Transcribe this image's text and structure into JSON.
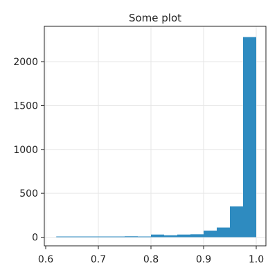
{
  "chart_data": {
    "type": "bar",
    "title": "Some plot",
    "xlabel": "",
    "ylabel": "",
    "xlim": [
      0.6,
      1.0
    ],
    "ylim": [
      0,
      2400
    ],
    "grid": true,
    "color": "#2E8BC0",
    "x_ticks": [
      0.6,
      0.7,
      0.8,
      0.9,
      1.0
    ],
    "x_tick_labels": [
      "0.6",
      "0.7",
      "0.8",
      "0.9",
      "1.0"
    ],
    "y_ticks": [
      0,
      500,
      1000,
      1500,
      2000
    ],
    "y_tick_labels": [
      "0",
      "500",
      "1000",
      "1500",
      "2000"
    ],
    "bins": [
      {
        "x0": 0.62,
        "x1": 0.65,
        "value": 2
      },
      {
        "x0": 0.65,
        "x1": 0.675,
        "value": 3
      },
      {
        "x0": 0.675,
        "x1": 0.7,
        "value": 2
      },
      {
        "x0": 0.7,
        "x1": 0.725,
        "value": 4
      },
      {
        "x0": 0.725,
        "x1": 0.75,
        "value": 5
      },
      {
        "x0": 0.75,
        "x1": 0.775,
        "value": 10
      },
      {
        "x0": 0.775,
        "x1": 0.8,
        "value": 7
      },
      {
        "x0": 0.8,
        "x1": 0.825,
        "value": 30
      },
      {
        "x0": 0.825,
        "x1": 0.85,
        "value": 22
      },
      {
        "x0": 0.85,
        "x1": 0.875,
        "value": 30
      },
      {
        "x0": 0.875,
        "x1": 0.9,
        "value": 33
      },
      {
        "x0": 0.9,
        "x1": 0.925,
        "value": 75
      },
      {
        "x0": 0.925,
        "x1": 0.95,
        "value": 110
      },
      {
        "x0": 0.95,
        "x1": 0.975,
        "value": 350
      },
      {
        "x0": 0.975,
        "x1": 1.0,
        "value": 2280
      }
    ]
  }
}
